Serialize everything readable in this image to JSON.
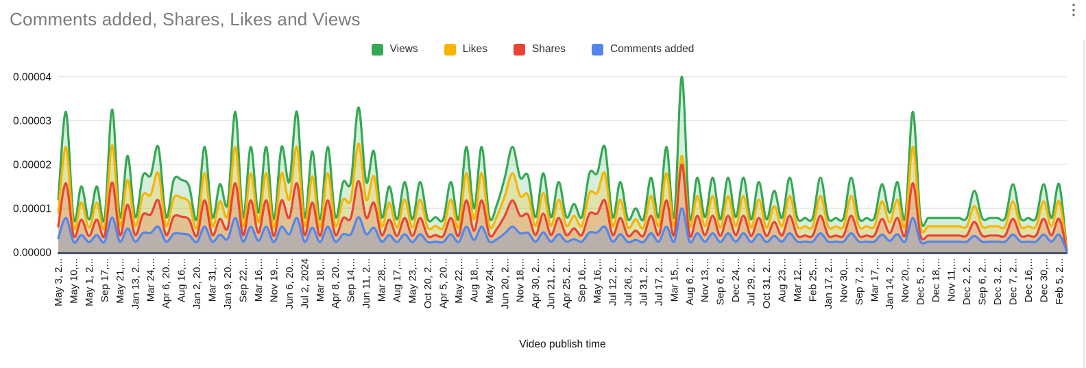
{
  "header": {
    "title": "Comments added, Shares, Likes and Views"
  },
  "toolbar": {
    "more_options_glyph": "⋮"
  },
  "legend": {
    "items": [
      {
        "label": "Views",
        "color": "#34A853"
      },
      {
        "label": "Likes",
        "color": "#F8B400"
      },
      {
        "label": "Shares",
        "color": "#EA4335"
      },
      {
        "label": "Comments added",
        "color": "#5286EC"
      }
    ]
  },
  "chart_data": {
    "type": "area",
    "title": "Comments added, Shares, Likes and Views",
    "xlabel": "Video publish time",
    "ylabel": "",
    "ylim": [
      0,
      4e-05
    ],
    "y_ticks": [
      "0.00000",
      "0.00001",
      "0.00002",
      "0.00003",
      "0.00004"
    ],
    "grid": true,
    "legend_position": "top",
    "smooth": true,
    "stacked": false,
    "value_scale": 1e-06,
    "points_per_tick": 2,
    "x_tick_labels": [
      "May 3, 2...",
      "May 10,...",
      "May 1, 2...",
      "Sep 17,...",
      "May 21,...",
      "Jan 13, 2...",
      "Mar 24,...",
      "Apr 6, 20...",
      "Aug 16,...",
      "Jan 2, 20...",
      "Mar 31,...",
      "Jan 9, 20...",
      "Sep 22,...",
      "Mar 16,...",
      "Nov 19,...",
      "Jun 6, 20...",
      "Jul 2, 2024",
      "Mar 18,...",
      "Apr 8, 20...",
      "Sep 14,...",
      "Jun 11, 2...",
      "Mar 28,...",
      "Aug 17,...",
      "May 23,...",
      "Oct 20, 2...",
      "Apr 5, 20...",
      "May 22,...",
      "Aug 18,...",
      "May 24,...",
      "Jun 20, 2...",
      "Nov 18,...",
      "Apr 30, 2...",
      "Jun 21, 2...",
      "Apr 25, 2...",
      "Sep 16,...",
      "May 16,...",
      "Jul 12, 2...",
      "Jul 26, 2...",
      "Jul 31, 2...",
      "Jul 17, 2...",
      "Mar 15,...",
      "Aug 6, 2...",
      "Nov 13,...",
      "Sep 6, 2...",
      "Dec 24,...",
      "Jul 29, 2...",
      "Oct 31, 2...",
      "Aug 23,...",
      "Mar 12,...",
      "Feb 25,...",
      "Jan 17, 2...",
      "Nov 30,...",
      "Sep 7, 2...",
      "Mar 17,...",
      "Jan 14, 2...",
      "Nov 20,...",
      "Dec 5, 2...",
      "Dec 18,...",
      "Nov 11,...",
      "Dec 2, 2...",
      "Sep 6, 2...",
      "Dec 3, 2...",
      "Dec 7, 2...",
      "Dec 16,...",
      "Dec 30,...",
      "Feb 5, 2..."
    ],
    "series": [
      {
        "name": "Views",
        "line_color": "#34A853",
        "fill_color": "rgba(52,168,83,0.20)",
        "values": [
          12,
          32,
          7.5,
          15,
          7.5,
          15,
          7.5,
          32.5,
          8,
          22,
          8,
          17.5,
          17.5,
          24,
          8,
          16.5,
          16.5,
          15,
          7.5,
          24,
          8,
          15.5,
          11,
          32,
          8,
          24,
          9,
          24,
          7.5,
          24,
          16,
          32,
          8,
          23,
          7.5,
          24,
          8,
          16,
          16,
          33,
          16,
          23,
          8,
          15,
          7.5,
          16,
          7.5,
          16,
          7.5,
          8,
          7.5,
          16,
          7.5,
          24,
          10,
          24,
          8,
          11,
          17,
          24,
          17,
          17.5,
          8,
          18,
          8,
          16,
          8,
          11,
          8,
          18,
          18,
          24,
          8,
          16,
          7.5,
          10,
          7.5,
          17,
          8,
          24,
          8,
          40,
          8,
          17,
          8,
          17,
          7.5,
          17,
          8,
          17,
          7.5,
          16,
          7.5,
          14,
          7.8,
          17,
          7.8,
          7.8,
          7.8,
          17,
          7.8,
          7.8,
          7.8,
          17,
          7.8,
          7.8,
          7.8,
          15.5,
          9,
          16,
          7.8,
          32,
          7.8,
          7.8,
          7.8,
          7.8,
          7.8,
          7.8,
          7.8,
          14,
          7.8,
          7.8,
          7.8,
          7.8,
          15.5,
          7.8,
          7.8,
          7.8,
          15.5,
          7.8,
          15.5,
          0.5
        ]
      },
      {
        "name": "Likes",
        "line_color": "#F8B400",
        "fill_color": "rgba(251,188,4,0.24)",
        "values": [
          9,
          24,
          5.6,
          11.3,
          5.6,
          11.3,
          5.6,
          24.4,
          6,
          16.5,
          6,
          13.1,
          13.1,
          18,
          6,
          12.4,
          12.4,
          11.3,
          5.6,
          18,
          6,
          11.6,
          8.3,
          24,
          6,
          18,
          6.8,
          18,
          5.6,
          18,
          12,
          24,
          6,
          17.3,
          5.6,
          18,
          6,
          12,
          12,
          24.8,
          12,
          17.3,
          6,
          11.3,
          5.6,
          12,
          5.6,
          12,
          5.6,
          6,
          5.6,
          12,
          5.6,
          18,
          7.5,
          18,
          6,
          8.3,
          12.8,
          18,
          12.8,
          13.1,
          6,
          13.5,
          6,
          12,
          6,
          8.3,
          6,
          13.5,
          13.5,
          18,
          6,
          12,
          5.6,
          7.5,
          5.6,
          12.8,
          6,
          18,
          6,
          22,
          6,
          12.8,
          6,
          12.8,
          5.6,
          12.8,
          6,
          12.8,
          5.6,
          12,
          5.6,
          10.5,
          5.9,
          12.8,
          5.9,
          5.9,
          5.9,
          12.8,
          5.9,
          5.9,
          5.9,
          12.8,
          5.9,
          5.9,
          5.9,
          11.6,
          6.8,
          12,
          5.9,
          24,
          5.9,
          5.9,
          5.9,
          5.9,
          5.9,
          5.9,
          5.9,
          10.5,
          5.9,
          5.9,
          5.9,
          5.9,
          11.6,
          5.9,
          5.9,
          5.9,
          11.6,
          5.9,
          11.6,
          0.4
        ]
      },
      {
        "name": "Shares",
        "line_color": "#EA4335",
        "fill_color": "rgba(234,67,53,0.20)",
        "values": [
          5.9,
          15.7,
          3.7,
          7.4,
          3.7,
          7.4,
          3.7,
          15.9,
          3.9,
          10.8,
          3.9,
          8.6,
          8.6,
          11.8,
          3.9,
          8.1,
          8.1,
          7.4,
          3.7,
          11.8,
          3.9,
          7.6,
          5.4,
          15.7,
          3.9,
          11.8,
          4.4,
          11.8,
          3.7,
          11.8,
          7.8,
          15.7,
          3.9,
          11.3,
          3.7,
          11.8,
          3.9,
          7.8,
          7.8,
          16.2,
          7.8,
          11.3,
          3.9,
          7.4,
          3.7,
          7.8,
          3.7,
          7.8,
          3.7,
          3.9,
          3.7,
          7.8,
          3.7,
          11.8,
          4.9,
          11.8,
          3.9,
          5.4,
          8.3,
          11.8,
          8.3,
          8.6,
          3.9,
          8.8,
          3.9,
          7.8,
          3.9,
          5.4,
          3.9,
          8.8,
          8.8,
          11.8,
          3.9,
          7.8,
          3.7,
          4.9,
          3.7,
          8.3,
          3.9,
          11.8,
          3.9,
          20,
          3.9,
          8.3,
          3.9,
          8.3,
          3.7,
          8.3,
          3.9,
          8.3,
          3.7,
          7.8,
          3.7,
          6.9,
          3.8,
          8.3,
          3.8,
          3.8,
          3.8,
          8.3,
          3.8,
          3.8,
          3.8,
          8.3,
          3.8,
          3.8,
          3.8,
          7.6,
          4.4,
          7.8,
          3.8,
          15.7,
          3.8,
          3.8,
          3.8,
          3.8,
          3.8,
          3.8,
          3.8,
          6.9,
          3.8,
          3.8,
          3.8,
          3.8,
          7.6,
          3.8,
          3.8,
          3.8,
          7.6,
          3.8,
          7.6,
          0.3
        ]
      },
      {
        "name": "Comments added",
        "line_color": "#5286EC",
        "fill_color": "rgba(82,134,236,0.28)",
        "values": [
          3.2,
          7.8,
          2.3,
          3.9,
          2.3,
          3.9,
          2.3,
          7.9,
          2.4,
          5.4,
          2.4,
          4.4,
          4.4,
          5.8,
          2.4,
          4.2,
          4.2,
          3.9,
          2.3,
          5.8,
          2.4,
          4,
          3,
          7.8,
          2.4,
          5.8,
          2.6,
          5.8,
          2.3,
          5.8,
          4.1,
          7.8,
          2.4,
          5.6,
          2.3,
          5.8,
          2.4,
          4.1,
          4.1,
          8,
          4.1,
          5.6,
          2.4,
          3.9,
          2.3,
          4.1,
          2.3,
          4.1,
          2.3,
          2.4,
          2.3,
          4.1,
          2.3,
          5.8,
          2.8,
          5.8,
          2.4,
          3,
          4.3,
          5.8,
          4.3,
          4.4,
          2.4,
          4.5,
          2.4,
          4.1,
          2.4,
          3,
          2.4,
          4.5,
          4.5,
          5.8,
          2.4,
          4.1,
          2.3,
          2.8,
          2.3,
          4.3,
          2.4,
          5.8,
          2.4,
          10,
          2.4,
          4.3,
          2.4,
          4.3,
          2.3,
          4.3,
          2.4,
          4.3,
          2.3,
          4.1,
          2.3,
          3.7,
          2.4,
          4.3,
          2.4,
          2.4,
          2.4,
          4.3,
          2.4,
          2.4,
          2.4,
          4.3,
          2.4,
          2.4,
          2.4,
          4,
          2.6,
          4.1,
          2.4,
          7.8,
          2.4,
          2.4,
          2.4,
          2.4,
          2.4,
          2.4,
          2.4,
          3.7,
          2.4,
          2.4,
          2.4,
          2.4,
          4,
          2.4,
          2.4,
          2.4,
          4,
          2.4,
          4,
          0.2
        ]
      }
    ],
    "style": {
      "grid_color": "#e3e3e3",
      "axis_line_color": "#4a5365",
      "tick_label_color": "#161616",
      "title_color": "#7b7b7b"
    }
  }
}
